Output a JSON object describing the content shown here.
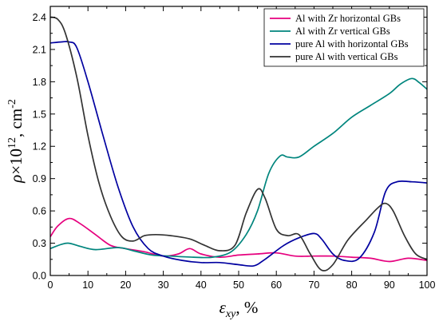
{
  "chart_data": {
    "type": "line",
    "xlabel": {
      "symbol": "ε",
      "subscript": "xy",
      "suffix": ", %"
    },
    "ylabel": {
      "symbol": "ρ",
      "mult": "×10",
      "exponent": "12",
      "unit": ", cm",
      "unit_exponent": "-2"
    },
    "xlim": [
      0,
      100
    ],
    "ylim": [
      0,
      2.5
    ],
    "x_ticks": [
      "0",
      "10",
      "20",
      "30",
      "40",
      "50",
      "60",
      "70",
      "80",
      "90",
      "100"
    ],
    "y_ticks": [
      "0.0",
      "0.3",
      "0.6",
      "0.9",
      "1.2",
      "1.5",
      "1.8",
      "2.1",
      "2.4"
    ],
    "grid": false,
    "legend_position": "top-right",
    "series": [
      {
        "name": "Al with Zr horizontal GBs",
        "color": "#e6007e",
        "points": [
          [
            0,
            0.36
          ],
          [
            2,
            0.46
          ],
          [
            5,
            0.53
          ],
          [
            8,
            0.48
          ],
          [
            12,
            0.38
          ],
          [
            16,
            0.28
          ],
          [
            20,
            0.25
          ],
          [
            25,
            0.22
          ],
          [
            30,
            0.18
          ],
          [
            34,
            0.2
          ],
          [
            37,
            0.25
          ],
          [
            40,
            0.2
          ],
          [
            45,
            0.17
          ],
          [
            50,
            0.19
          ],
          [
            55,
            0.2
          ],
          [
            60,
            0.21
          ],
          [
            65,
            0.18
          ],
          [
            70,
            0.18
          ],
          [
            75,
            0.18
          ],
          [
            80,
            0.17
          ],
          [
            85,
            0.16
          ],
          [
            90,
            0.13
          ],
          [
            95,
            0.16
          ],
          [
            100,
            0.14
          ]
        ]
      },
      {
        "name": "Al with Zr vertical GBs",
        "color": "#00857d",
        "points": [
          [
            0,
            0.25
          ],
          [
            3,
            0.29
          ],
          [
            5,
            0.3
          ],
          [
            8,
            0.27
          ],
          [
            12,
            0.24
          ],
          [
            18,
            0.26
          ],
          [
            22,
            0.23
          ],
          [
            27,
            0.19
          ],
          [
            32,
            0.18
          ],
          [
            38,
            0.17
          ],
          [
            43,
            0.17
          ],
          [
            48,
            0.22
          ],
          [
            52,
            0.38
          ],
          [
            55,
            0.6
          ],
          [
            58,
            0.95
          ],
          [
            61,
            1.11
          ],
          [
            63,
            1.1
          ],
          [
            66,
            1.1
          ],
          [
            70,
            1.2
          ],
          [
            75,
            1.32
          ],
          [
            80,
            1.47
          ],
          [
            85,
            1.58
          ],
          [
            90,
            1.69
          ],
          [
            93,
            1.78
          ],
          [
            96,
            1.83
          ],
          [
            98,
            1.79
          ],
          [
            100,
            1.73
          ]
        ]
      },
      {
        "name": "pure Al with horizontal GBs",
        "color": "#0000a0",
        "points": [
          [
            0,
            2.16
          ],
          [
            3,
            2.17
          ],
          [
            5,
            2.17
          ],
          [
            7,
            2.12
          ],
          [
            10,
            1.8
          ],
          [
            14,
            1.3
          ],
          [
            18,
            0.82
          ],
          [
            22,
            0.45
          ],
          [
            26,
            0.25
          ],
          [
            30,
            0.18
          ],
          [
            35,
            0.14
          ],
          [
            40,
            0.12
          ],
          [
            45,
            0.12
          ],
          [
            50,
            0.1
          ],
          [
            54,
            0.09
          ],
          [
            57,
            0.15
          ],
          [
            62,
            0.28
          ],
          [
            66,
            0.35
          ],
          [
            70,
            0.39
          ],
          [
            72,
            0.34
          ],
          [
            75,
            0.2
          ],
          [
            78,
            0.14
          ],
          [
            82,
            0.16
          ],
          [
            86,
            0.4
          ],
          [
            89,
            0.78
          ],
          [
            92,
            0.87
          ],
          [
            96,
            0.87
          ],
          [
            100,
            0.86
          ]
        ]
      },
      {
        "name": "pure Al with vertical GBs",
        "color": "#333333",
        "points": [
          [
            0,
            2.4
          ],
          [
            2,
            2.38
          ],
          [
            4,
            2.25
          ],
          [
            7,
            1.85
          ],
          [
            10,
            1.3
          ],
          [
            13,
            0.85
          ],
          [
            16,
            0.55
          ],
          [
            19,
            0.36
          ],
          [
            22,
            0.32
          ],
          [
            25,
            0.37
          ],
          [
            28,
            0.38
          ],
          [
            32,
            0.37
          ],
          [
            37,
            0.34
          ],
          [
            41,
            0.28
          ],
          [
            45,
            0.23
          ],
          [
            49,
            0.28
          ],
          [
            52,
            0.58
          ],
          [
            55,
            0.8
          ],
          [
            57,
            0.72
          ],
          [
            60,
            0.43
          ],
          [
            63,
            0.37
          ],
          [
            66,
            0.38
          ],
          [
            69,
            0.2
          ],
          [
            72,
            0.05
          ],
          [
            75,
            0.1
          ],
          [
            79,
            0.33
          ],
          [
            84,
            0.52
          ],
          [
            87,
            0.63
          ],
          [
            89,
            0.67
          ],
          [
            91,
            0.6
          ],
          [
            94,
            0.37
          ],
          [
            97,
            0.2
          ],
          [
            100,
            0.15
          ]
        ]
      }
    ]
  }
}
